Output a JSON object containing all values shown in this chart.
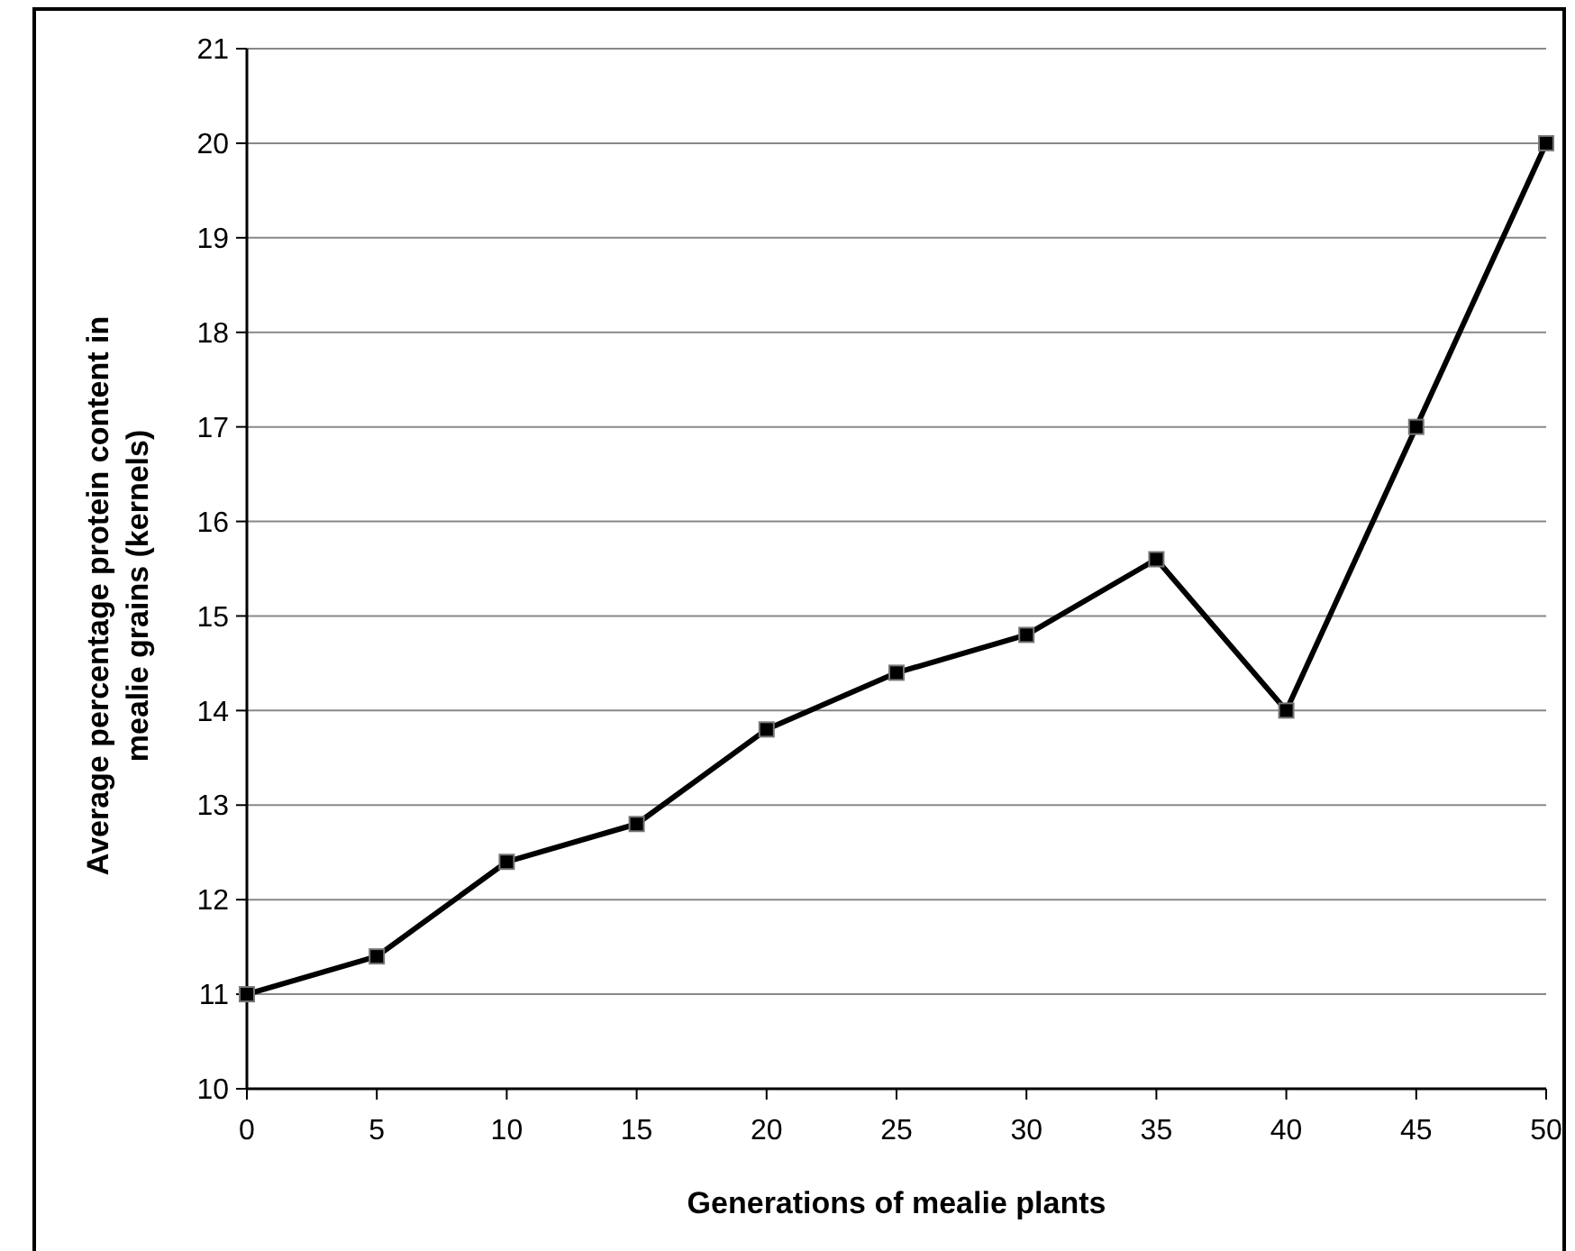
{
  "chart_data": {
    "type": "line",
    "xlabel": "Generations of mealie plants",
    "ylabel": "Average percentage protein content in mealie grains (kernels)",
    "x": [
      0,
      5,
      10,
      15,
      20,
      25,
      30,
      35,
      40,
      45,
      50
    ],
    "series": [
      {
        "color": "#000000",
        "values": [
          11,
          11.4,
          12.4,
          12.8,
          13.8,
          14.4,
          14.8,
          15.6,
          14,
          17,
          20
        ]
      }
    ],
    "xlim": [
      0,
      50
    ],
    "xticks": [
      0,
      5,
      10,
      15,
      20,
      25,
      30,
      35,
      40,
      45,
      50
    ],
    "ylim": [
      10,
      21
    ],
    "yticks": [
      10,
      11,
      12,
      13,
      14,
      15,
      16,
      17,
      18,
      19,
      20,
      21
    ],
    "grid": "y",
    "marker": "square",
    "line_style": "solid"
  }
}
